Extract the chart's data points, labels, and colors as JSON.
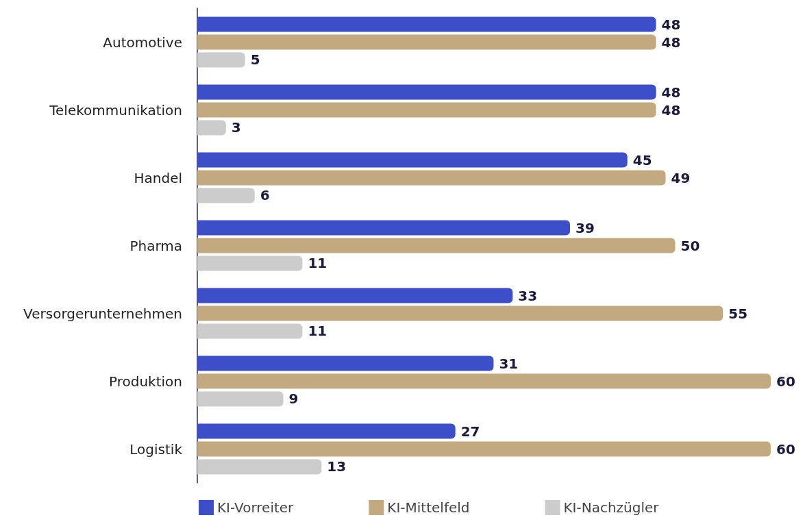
{
  "chart_data": {
    "type": "bar",
    "orientation": "horizontal",
    "categories": [
      "Automotive",
      "Telekommunikation",
      "Handel",
      "Pharma",
      "Versorgerunternehmen",
      "Produktion",
      "Logistik"
    ],
    "series": [
      {
        "name": "KI-Vorreiter",
        "color": "#3d4ec9",
        "values": [
          48,
          48,
          45,
          39,
          33,
          31,
          27
        ]
      },
      {
        "name": "KI-Mittelfeld",
        "color": "#c2a97f",
        "values": [
          48,
          48,
          49,
          50,
          55,
          60,
          60
        ]
      },
      {
        "name": "KI-Nachzügler",
        "color": "#cccccc",
        "values": [
          5,
          3,
          6,
          11,
          11,
          9,
          13
        ]
      }
    ],
    "data_labels": true,
    "legend": "bottom",
    "grid": false
  }
}
